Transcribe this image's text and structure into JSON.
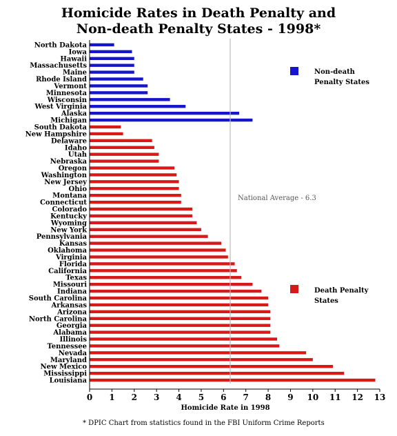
{
  "title_line1": "Homicide Rates in Death Penalty and",
  "title_line2": "Non-death Penalty States - 1998*",
  "footnote": "* DPIC Chart from statistics found in the FBI Uniform Crime Reports",
  "colors": {
    "non_death": "#1515cc",
    "death": "#d61a1a",
    "average_line": "#bbbbbb"
  },
  "chart_data": {
    "type": "bar",
    "orientation": "horizontal",
    "title": "Homicide Rates in Death Penalty and Non-death Penalty States - 1998*",
    "xlabel": "Homicide Rate in 1998",
    "ylabel": "",
    "xlim": [
      0,
      13
    ],
    "xticks": [
      0,
      1,
      2,
      3,
      4,
      5,
      6,
      7,
      8,
      9,
      10,
      11,
      12,
      13
    ],
    "grid": false,
    "legend_position": "right",
    "reference_line": {
      "value": 6.3,
      "label": "National Average - 6.3"
    },
    "series": [
      {
        "name": "Non-death Penalty States",
        "color": "#1515cc",
        "categories": [
          "North Dakota",
          "Iowa",
          "Hawaii",
          "Massachusetts",
          "Maine",
          "Rhode Island",
          "Vermont",
          "Minnesota",
          "Wisconsin",
          "West Virginia",
          "Alaska",
          "Michigan"
        ],
        "values": [
          1.1,
          1.9,
          2.0,
          2.0,
          2.0,
          2.4,
          2.6,
          2.6,
          3.6,
          4.3,
          6.7,
          7.3
        ]
      },
      {
        "name": "Death Penalty States",
        "color": "#d61a1a",
        "categories": [
          "South Dakota",
          "New Hampshire",
          "Delaware",
          "Idaho",
          "Utah",
          "Nebraska",
          "Oregon",
          "Washington",
          "New Jersey",
          "Ohio",
          "Montana",
          "Connecticut",
          "Colorado",
          "Kentucky",
          "Wyoming",
          "New York",
          "Pennsylvania",
          "Kansas",
          "Oklahoma",
          "Virginia",
          "Florida",
          "California",
          "Texas",
          "Missouri",
          "Indiana",
          "South Carolina",
          "Arkansas",
          "Arizona",
          "North Carolina",
          "Georgia",
          "Alabama",
          "Illinois",
          "Tennessee",
          "Nevada",
          "Maryland",
          "New Mexico",
          "Mississippi",
          "Louisiana"
        ],
        "values": [
          1.4,
          1.5,
          2.8,
          2.9,
          3.1,
          3.1,
          3.8,
          3.9,
          4.0,
          4.0,
          4.1,
          4.1,
          4.6,
          4.6,
          4.8,
          5.0,
          5.3,
          5.9,
          6.1,
          6.2,
          6.5,
          6.6,
          6.8,
          7.3,
          7.7,
          8.0,
          8.0,
          8.1,
          8.1,
          8.1,
          8.1,
          8.4,
          8.5,
          9.7,
          10.0,
          10.9,
          11.4,
          12.8
        ]
      }
    ]
  }
}
